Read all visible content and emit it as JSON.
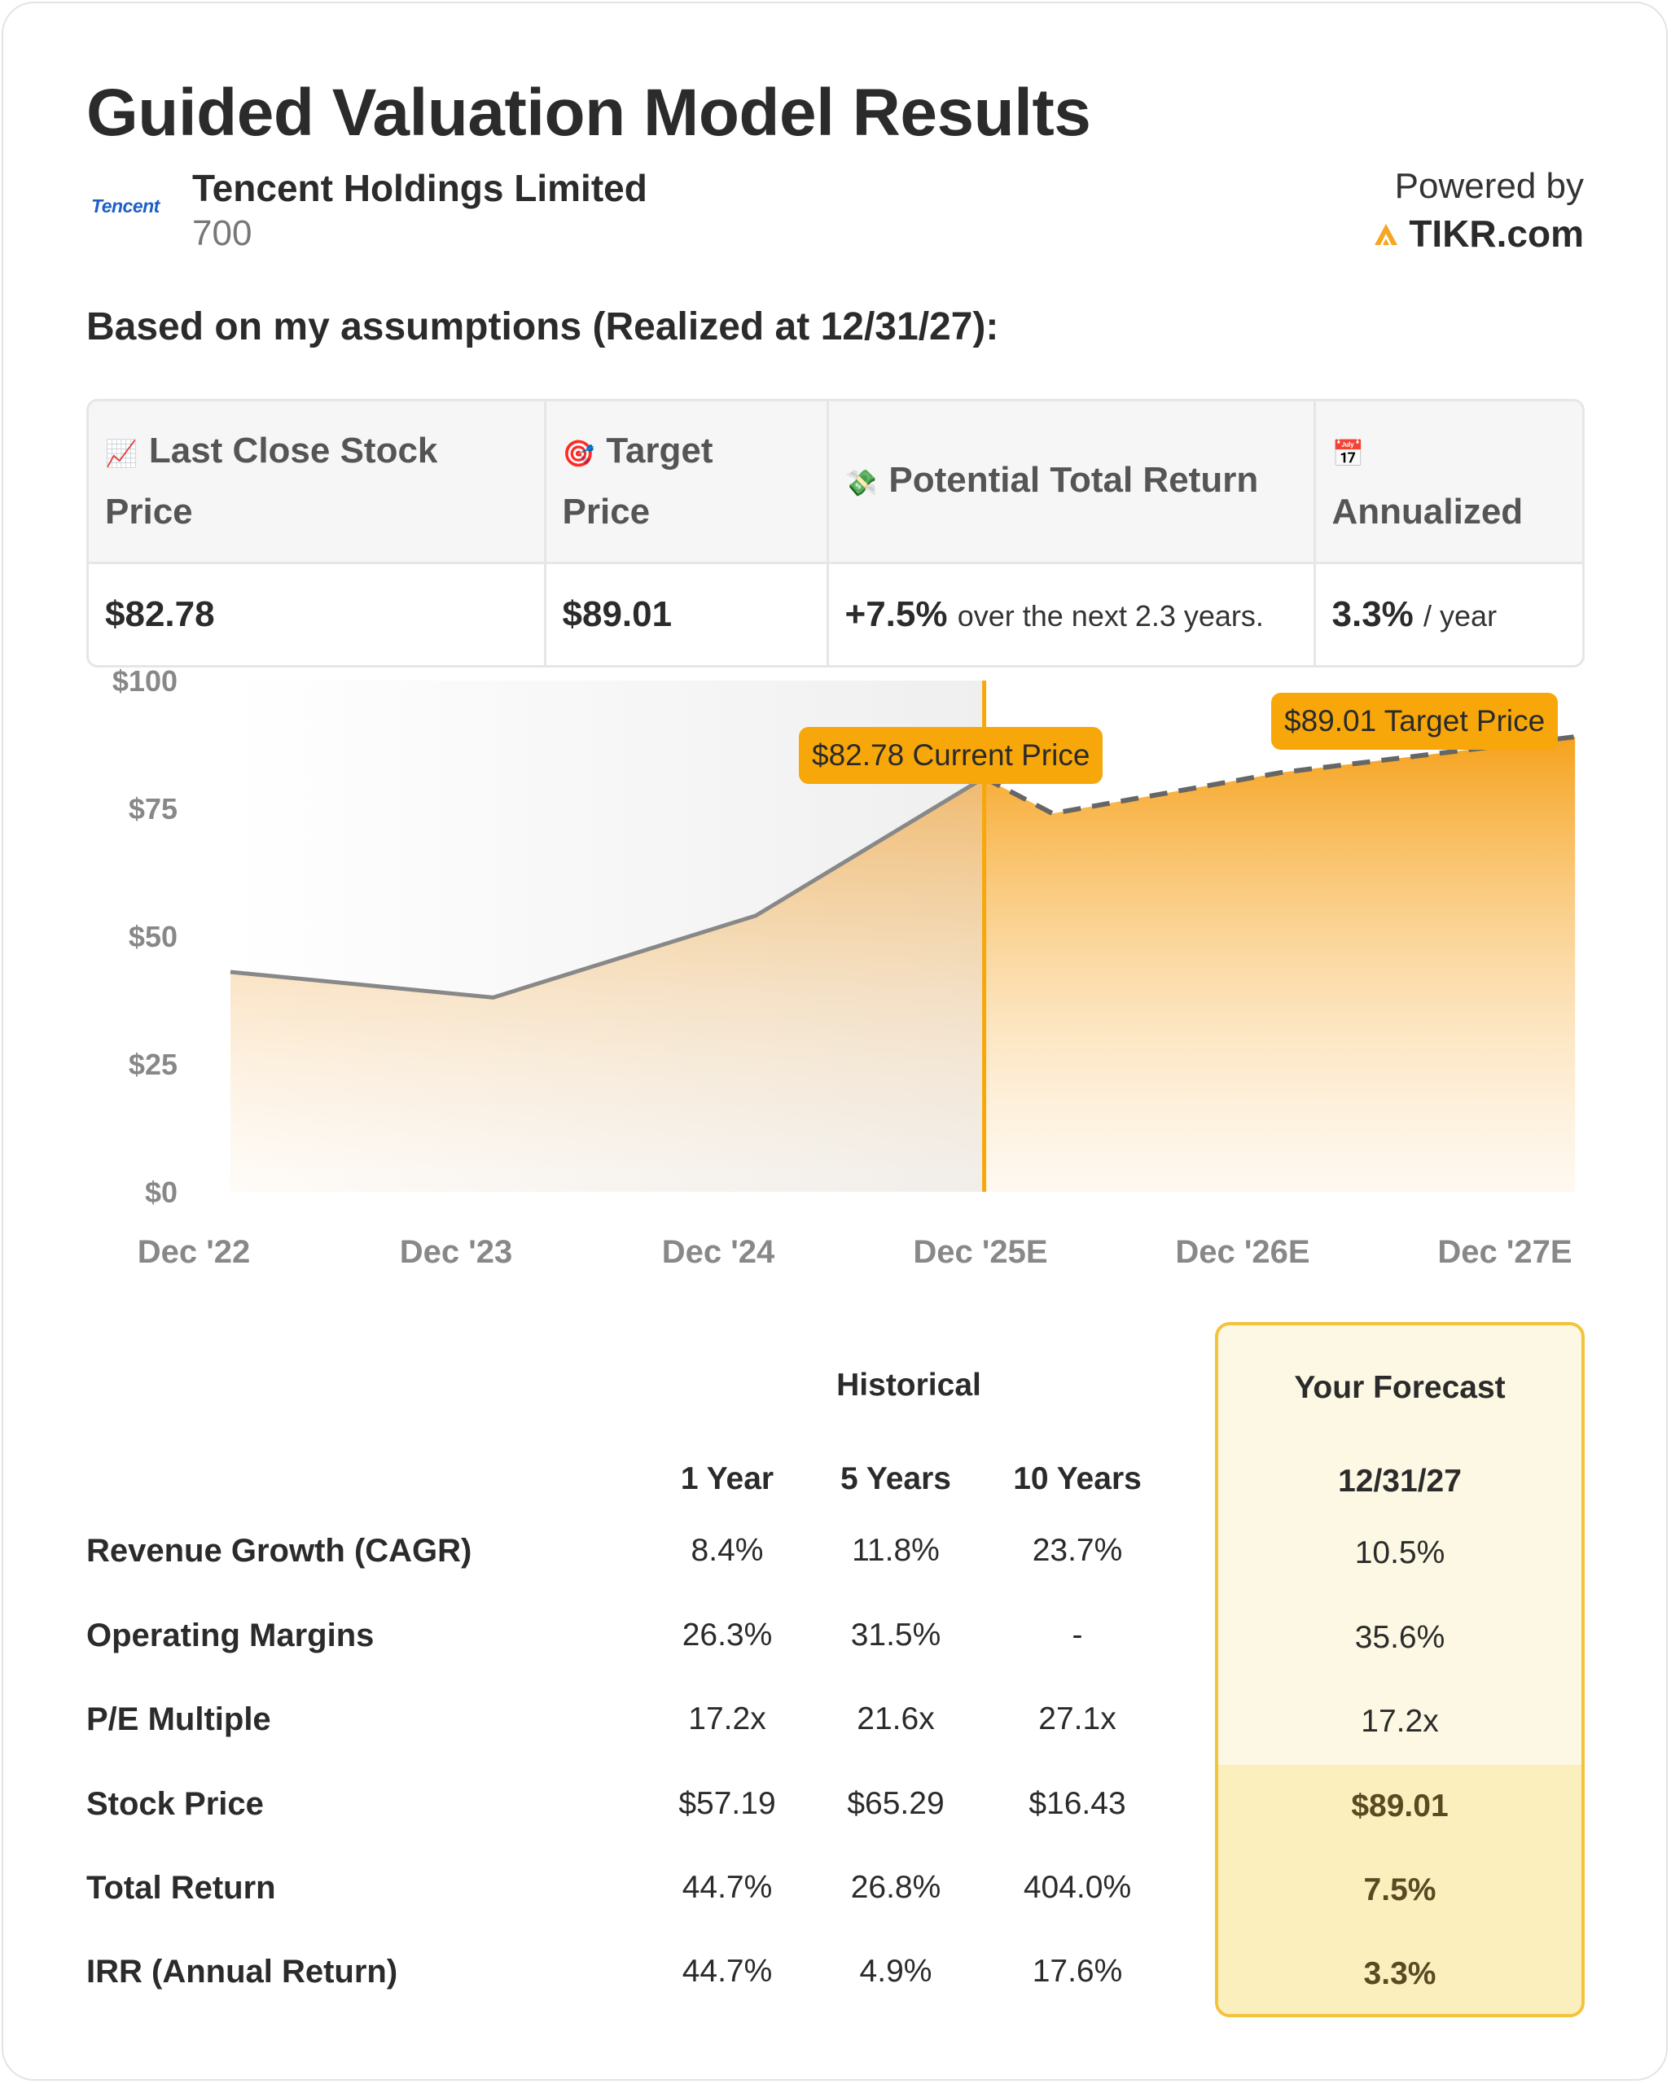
{
  "header": {
    "title": "Guided Valuation Model Results",
    "logo_text": "Tencent",
    "company": "Tencent Holdings Limited",
    "ticker": "700",
    "powered_by": "Powered by",
    "brand": "TIKR.com",
    "brand_color": "#f5a623"
  },
  "assumptions_heading": "Based on my assumptions (Realized at 12/31/27):",
  "summary": {
    "headers": [
      {
        "icon": "chart-increasing-icon",
        "emoji": "📈",
        "label": "Last Close Stock Price"
      },
      {
        "icon": "target-icon",
        "emoji": "🎯",
        "label": "Target Price"
      },
      {
        "icon": "money-with-wings-icon",
        "emoji": "💸",
        "label": "Potential Total Return"
      },
      {
        "icon": "calendar-icon",
        "emoji": "📅",
        "label": "Annualized"
      }
    ],
    "last_close": "$82.78",
    "target": "$89.01",
    "total_return": "+7.5%",
    "total_return_suffix": "over the next 2.3 years.",
    "annualized": "3.3%",
    "annualized_suffix": "/ year"
  },
  "chart_data": {
    "type": "area",
    "categories": [
      "Dec '22",
      "Dec '23",
      "Dec '24",
      "Dec '25E",
      "Dec '26E",
      "Dec '27E"
    ],
    "yticks": [
      "$0",
      "$25",
      "$50",
      "$75",
      "$100"
    ],
    "ylim": [
      0,
      100
    ],
    "historical": {
      "x": [
        0,
        1,
        2,
        2.87
      ],
      "y": [
        43,
        38,
        54,
        81
      ]
    },
    "forecast": {
      "x": [
        2.87,
        3.13,
        4,
        5.12
      ],
      "y": [
        81,
        74,
        82,
        89
      ]
    },
    "current_marker_x": 2.87,
    "annotations": {
      "current": "$82.78 Current Price",
      "target": "$89.01 Target Price"
    },
    "colors": {
      "accent": "#f7a70a",
      "line": "#888888",
      "grid_bg": "#f2f2f2"
    }
  },
  "metrics": {
    "historical_label": "Historical",
    "forecast_label": "Your Forecast",
    "columns": [
      "1 Year",
      "5 Years",
      "10 Years"
    ],
    "forecast_date": "12/31/27",
    "rows": [
      {
        "label": "Revenue Growth (CAGR)",
        "values": [
          "8.4%",
          "11.8%",
          "23.7%"
        ],
        "forecast": "10.5%"
      },
      {
        "label": "Operating Margins",
        "values": [
          "26.3%",
          "31.5%",
          "-"
        ],
        "forecast": "35.6%"
      },
      {
        "label": "P/E Multiple",
        "values": [
          "17.2x",
          "21.6x",
          "27.1x"
        ],
        "forecast": "17.2x"
      },
      {
        "label": "Stock Price",
        "values": [
          "$57.19",
          "$65.29",
          "$16.43"
        ],
        "forecast": "$89.01"
      },
      {
        "label": "Total Return",
        "values": [
          "44.7%",
          "26.8%",
          "404.0%"
        ],
        "forecast": "7.5%"
      },
      {
        "label": "IRR (Annual Return)",
        "values": [
          "44.7%",
          "4.9%",
          "17.6%"
        ],
        "forecast": "3.3%"
      }
    ]
  }
}
